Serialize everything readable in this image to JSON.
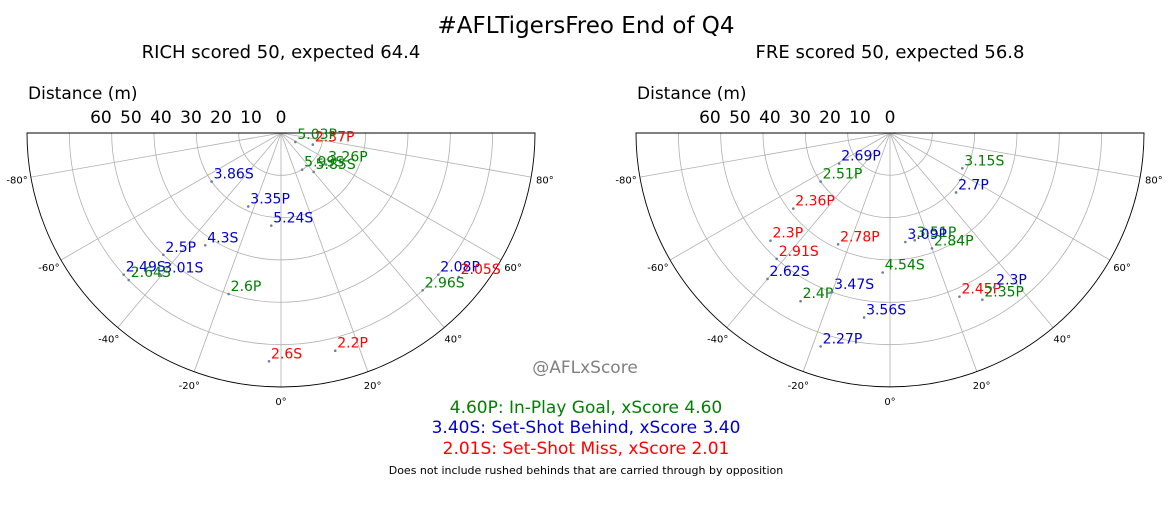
{
  "title": "#AFLTigersFreo End of Q4",
  "watermark": "@AFLxScore",
  "colors": {
    "in_play_goal": "#008000",
    "set_shot_behind": "#0000cc",
    "set_shot_miss": "#ff0000",
    "grid": "#b0b0b0",
    "marker": "#6a7fa0"
  },
  "legend": [
    {
      "text": "4.60P: In-Play Goal, xScore 4.60",
      "type": "in_play_goal"
    },
    {
      "text": "3.40S: Set-Shot Behind, xScore 3.40",
      "type": "set_shot_behind"
    },
    {
      "text": "2.01S: Set-Shot Miss, xScore 2.01",
      "type": "set_shot_miss"
    }
  ],
  "footnote": "Does not include rushed behinds that are carried through by opposition",
  "chart_data": [
    {
      "type": "scatter",
      "projection": "polar-half (angle = shot angle in degrees, radius = distance)",
      "title": "RICH scored 50, expected 64.4",
      "radial_label": "Distance (m)",
      "radial_ticks": [
        "60",
        "50",
        "40",
        "30",
        "20",
        "10",
        "0"
      ],
      "angle_ticks": [
        "-80°",
        "-60°",
        "-40°",
        "-20°",
        "0°",
        "20°",
        "40°",
        "60°",
        "80°"
      ],
      "r_range": [
        0,
        60
      ],
      "angle_range": [
        -90,
        90
      ],
      "points": [
        {
          "label": "2.37P",
          "angle": 70,
          "distance": 8,
          "type": "set_shot_miss"
        },
        {
          "label": "5.03P",
          "angle": 58,
          "distance": 4,
          "type": "in_play_goal"
        },
        {
          "label": "5.99S",
          "angle": 30,
          "distance": 10,
          "type": "in_play_goal"
        },
        {
          "label": "5.85S",
          "angle": 40,
          "distance": 12,
          "type": "in_play_goal"
        },
        {
          "label": "3.26P",
          "angle": 55,
          "distance": 13,
          "type": "in_play_goal"
        },
        {
          "label": "3.86S",
          "angle": -55,
          "distance": 20,
          "type": "set_shot_behind"
        },
        {
          "label": "3.35P",
          "angle": -24,
          "distance": 19,
          "type": "set_shot_behind"
        },
        {
          "label": "5.24S",
          "angle": -6,
          "distance": 22,
          "type": "set_shot_behind"
        },
        {
          "label": "4.3S",
          "angle": -34,
          "distance": 32,
          "type": "set_shot_behind"
        },
        {
          "label": "2.5P",
          "angle": -44,
          "distance": 40,
          "type": "set_shot_behind"
        },
        {
          "label": "3.01S",
          "angle": -40,
          "distance": 44,
          "type": "set_shot_behind"
        },
        {
          "label": "2.49S",
          "angle": -48,
          "distance": 50,
          "type": "set_shot_behind"
        },
        {
          "label": "2.64S",
          "angle": -46,
          "distance": 50,
          "type": "in_play_goal"
        },
        {
          "label": "2.6P",
          "angle": -18,
          "distance": 40,
          "type": "in_play_goal"
        },
        {
          "label": "2.08P",
          "angle": 48,
          "distance": 50,
          "type": "set_shot_behind"
        },
        {
          "label": "2.05S",
          "angle": 51,
          "distance": 54,
          "type": "set_shot_miss"
        },
        {
          "label": "2.96S",
          "angle": 42,
          "distance": 50,
          "type": "in_play_goal"
        },
        {
          "label": "2.6S",
          "angle": -3,
          "distance": 54,
          "type": "set_shot_miss"
        },
        {
          "label": "2.2P",
          "angle": 14,
          "distance": 53,
          "type": "set_shot_miss"
        }
      ]
    },
    {
      "type": "scatter",
      "projection": "polar-half (angle = shot angle in degrees, radius = distance)",
      "title": "FRE scored 50, expected 56.8",
      "radial_label": "Distance (m)",
      "radial_ticks": [
        "60",
        "50",
        "40",
        "30",
        "20",
        "10",
        "0"
      ],
      "angle_ticks": [
        "-80°",
        "-60°",
        "-40°",
        "-20°",
        "0°",
        "20°",
        "40°",
        "60°",
        "80°"
      ],
      "r_range": [
        0,
        60
      ],
      "angle_range": [
        -90,
        90
      ],
      "points": [
        {
          "label": "3.15S",
          "angle": 64,
          "distance": 19,
          "type": "in_play_goal"
        },
        {
          "label": "2.69P",
          "angle": -59,
          "distance": 14,
          "type": "set_shot_behind"
        },
        {
          "label": "2.51P",
          "angle": -55,
          "distance": 20,
          "type": "in_play_goal"
        },
        {
          "label": "2.7P",
          "angle": 48,
          "distance": 21,
          "type": "set_shot_behind"
        },
        {
          "label": "2.36P",
          "angle": -52,
          "distance": 29,
          "type": "set_shot_miss"
        },
        {
          "label": "3.51P",
          "angle": 13,
          "distance": 26,
          "type": "in_play_goal"
        },
        {
          "label": "2.3P",
          "angle": -48,
          "distance": 38,
          "type": "set_shot_miss"
        },
        {
          "label": "3.09P",
          "angle": 8,
          "distance": 26,
          "type": "set_shot_behind"
        },
        {
          "label": "2.84P",
          "angle": 20,
          "distance": 29,
          "type": "in_play_goal"
        },
        {
          "label": "2.91S",
          "angle": -42,
          "distance": 40,
          "type": "set_shot_miss"
        },
        {
          "label": "2.78P",
          "angle": -25,
          "distance": 29,
          "type": "set_shot_miss"
        },
        {
          "label": "2.62S",
          "angle": -40,
          "distance": 45,
          "type": "set_shot_behind"
        },
        {
          "label": "4.54S",
          "angle": -3,
          "distance": 33,
          "type": "in_play_goal"
        },
        {
          "label": "2.4P",
          "angle": -28,
          "distance": 45,
          "type": "in_play_goal"
        },
        {
          "label": "3.47S",
          "angle": -20,
          "distance": 40,
          "type": "set_shot_behind"
        },
        {
          "label": "2.45P",
          "angle": 23,
          "distance": 42,
          "type": "set_shot_miss"
        },
        {
          "label": "2.3P",
          "angle": 34,
          "distance": 44,
          "type": "set_shot_behind"
        },
        {
          "label": "2.35P",
          "angle": 29,
          "distance": 45,
          "type": "in_play_goal"
        },
        {
          "label": "3.56S",
          "angle": -8,
          "distance": 44,
          "type": "set_shot_behind"
        },
        {
          "label": "2.27P",
          "angle": -18,
          "distance": 53,
          "type": "set_shot_behind"
        }
      ]
    }
  ]
}
